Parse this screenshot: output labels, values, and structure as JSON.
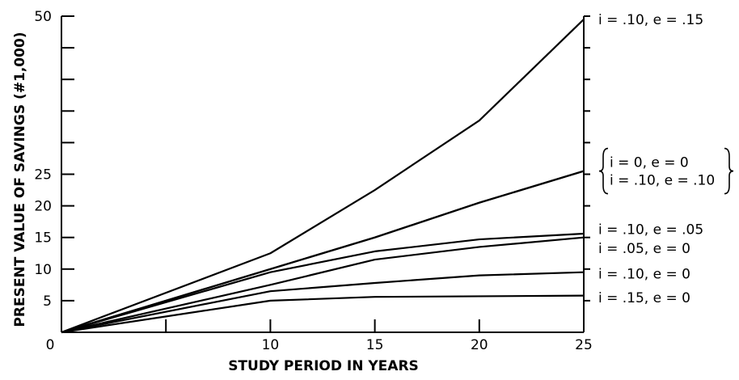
{
  "chart_data": {
    "type": "line",
    "title": "",
    "xlabel": "STUDY PERIOD IN YEARS",
    "ylabel": "PRESENT VALUE OF SAVINGS (#1,000)",
    "xlim": [
      0,
      25
    ],
    "ylim": [
      0,
      50
    ],
    "x_ticks": [
      {
        "value": 0,
        "label": "0"
      },
      {
        "value": 5,
        "label": ""
      },
      {
        "value": 10,
        "label": "10"
      },
      {
        "value": 15,
        "label": "15"
      },
      {
        "value": 20,
        "label": "20"
      },
      {
        "value": 25,
        "label": "25"
      }
    ],
    "y_ticks": [
      {
        "value": 5,
        "label": "5"
      },
      {
        "value": 10,
        "label": "10"
      },
      {
        "value": 15,
        "label": "15"
      },
      {
        "value": 20,
        "label": "20"
      },
      {
        "value": 25,
        "label": "25"
      },
      {
        "value": 30,
        "label": ""
      },
      {
        "value": 35,
        "label": ""
      },
      {
        "value": 40,
        "label": ""
      },
      {
        "value": 45,
        "label": ""
      },
      {
        "value": 50,
        "label": "50"
      }
    ],
    "grid": false,
    "legend": "none",
    "line_color": "#000000",
    "series": [
      {
        "name": "i = .10, e = .15",
        "x": [
          0,
          10,
          15,
          20,
          25
        ],
        "y": [
          0,
          12.5,
          22.5,
          33.5,
          49.5
        ]
      },
      {
        "name": "i = 0, e = 0",
        "x": [
          0,
          10,
          15,
          20,
          25
        ],
        "y": [
          0,
          10,
          15,
          20.5,
          25.5
        ]
      },
      {
        "name": "i = .10, e = .10",
        "x": [
          0,
          10,
          15,
          20,
          25
        ],
        "y": [
          0,
          10,
          15,
          20.5,
          25.5
        ]
      },
      {
        "name": "i = .10, e = .05",
        "x": [
          0,
          10,
          15,
          20,
          25
        ],
        "y": [
          0,
          9.5,
          12.8,
          14.7,
          15.6
        ]
      },
      {
        "name": "i = .05, e = 0",
        "x": [
          0,
          10,
          15,
          20,
          25
        ],
        "y": [
          0,
          7.5,
          11.5,
          13.5,
          15
        ]
      },
      {
        "name": "i = .10, e = 0",
        "x": [
          0,
          10,
          15,
          20,
          25
        ],
        "y": [
          0,
          6.5,
          7.8,
          9,
          9.5
        ]
      },
      {
        "name": "i = .15, e = 0",
        "x": [
          0,
          10,
          15,
          20,
          25
        ],
        "y": [
          0,
          5,
          5.6,
          5.7,
          5.8
        ]
      }
    ],
    "label_groups": [
      {
        "items": [
          "i = .10, e = .15"
        ],
        "at": 49.5,
        "braced": false
      },
      {
        "items": [
          "i = 0, e = 0",
          "i = .10, e = .10"
        ],
        "at": 25.5,
        "braced": true
      },
      {
        "items": [
          "i = .10, e = .05"
        ],
        "at": 16.3,
        "braced": false
      },
      {
        "items": [
          "i = .05, e = 0"
        ],
        "at": 13.3,
        "braced": false
      },
      {
        "items": [
          "i = .10, e = 0"
        ],
        "at": 9.3,
        "braced": false
      },
      {
        "items": [
          "i = .15, e = 0"
        ],
        "at": 5.5,
        "braced": false
      }
    ]
  }
}
